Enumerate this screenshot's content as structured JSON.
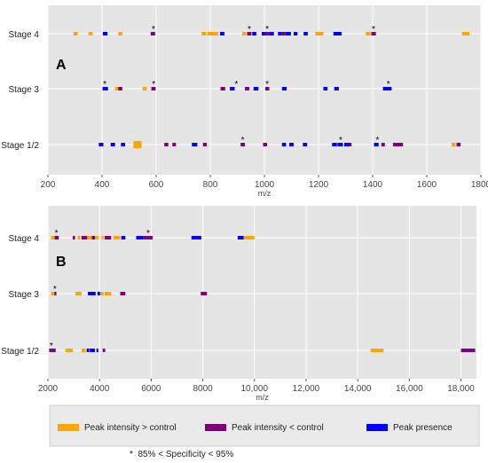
{
  "chart_data": [
    {
      "type": "scatter",
      "panel_label": "A",
      "xlabel": "m/z",
      "ylabel": "",
      "xlim": [
        200,
        1800
      ],
      "xticks": [
        200,
        400,
        600,
        800,
        1000,
        1200,
        1400,
        1600,
        1800
      ],
      "xtick_labels": [
        "200",
        "400",
        "600",
        "800",
        "1000",
        "1200",
        "1400",
        "1600",
        "1800"
      ],
      "categories": [
        "Stage 4",
        "Stage 3",
        "Stage 1/2"
      ],
      "grid": true,
      "series": [
        {
          "name": "Peak intensity > control",
          "color": "#FFA500",
          "points": [
            {
              "y": "Stage 4",
              "x": [
                295,
                310
              ]
            },
            {
              "y": "Stage 4",
              "x": [
                350,
                365
              ]
            },
            {
              "y": "Stage 4",
              "x": [
                460,
                475
              ]
            },
            {
              "y": "Stage 4",
              "x": [
                768,
                785
              ]
            },
            {
              "y": "Stage 4",
              "x": [
                790,
                830
              ]
            },
            {
              "y": "Stage 4",
              "x": [
                918,
                932
              ]
            },
            {
              "y": "Stage 4",
              "x": [
                1188,
                1218
              ]
            },
            {
              "y": "Stage 4",
              "x": [
                1375,
                1392
              ]
            },
            {
              "y": "Stage 4",
              "x": [
                1730,
                1758
              ]
            },
            {
              "y": "Stage 3",
              "x": [
                448,
                462
              ]
            },
            {
              "y": "Stage 3",
              "x": [
                550,
                565
              ]
            },
            {
              "y": "Stage 1/2",
              "x": [
                516,
                546
              ]
            },
            {
              "y": "Stage 1/2",
              "x": [
                1692,
                1705
              ]
            }
          ]
        },
        {
          "name": "Peak intensity < control",
          "color": "#800080",
          "points": [
            {
              "y": "Stage 4",
              "x": [
                580,
                596
              ]
            },
            {
              "y": "Stage 4",
              "x": [
                936,
                952
              ]
            },
            {
              "y": "Stage 4",
              "x": [
                1003,
                1020
              ]
            },
            {
              "y": "Stage 4",
              "x": [
                1065,
                1078
              ]
            },
            {
              "y": "Stage 4",
              "x": [
                1395,
                1412
              ]
            },
            {
              "y": "Stage 3",
              "x": [
                460,
                475
              ]
            },
            {
              "y": "Stage 3",
              "x": [
                582,
                598
              ]
            },
            {
              "y": "Stage 3",
              "x": [
                838,
                855
              ]
            },
            {
              "y": "Stage 3",
              "x": [
                872,
                883
              ]
            },
            {
              "y": "Stage 3",
              "x": [
                928,
                944
              ]
            },
            {
              "y": "Stage 3",
              "x": [
                1003,
                1018
              ]
            },
            {
              "y": "Stage 1/2",
              "x": [
                630,
                645
              ]
            },
            {
              "y": "Stage 1/2",
              "x": [
                660,
                673
              ]
            },
            {
              "y": "Stage 1/2",
              "x": [
                773,
                787
              ]
            },
            {
              "y": "Stage 1/2",
              "x": [
                912,
                928
              ]
            },
            {
              "y": "Stage 1/2",
              "x": [
                995,
                1010
              ]
            },
            {
              "y": "Stage 1/2",
              "x": [
                1310,
                1322
              ]
            },
            {
              "y": "Stage 1/2",
              "x": [
                1432,
                1445
              ]
            },
            {
              "y": "Stage 1/2",
              "x": [
                1475,
                1512
              ]
            },
            {
              "y": "Stage 1/2",
              "x": [
                1710,
                1725
              ]
            }
          ]
        },
        {
          "name": "Peak presence",
          "color": "#0000FF",
          "points": [
            {
              "y": "Stage 4",
              "x": [
                403,
                420
              ]
            },
            {
              "y": "Stage 4",
              "x": [
                836,
                852
              ]
            },
            {
              "y": "Stage 4",
              "x": [
                955,
                970
              ]
            },
            {
              "y": "Stage 4",
              "x": [
                990,
                1003
              ]
            },
            {
              "y": "Stage 4",
              "x": [
                1020,
                1035
              ]
            },
            {
              "y": "Stage 4",
              "x": [
                1050,
                1065
              ]
            },
            {
              "y": "Stage 4",
              "x": [
                1078,
                1098
              ]
            },
            {
              "y": "Stage 4",
              "x": [
                1108,
                1122
              ]
            },
            {
              "y": "Stage 4",
              "x": [
                1145,
                1160
              ]
            },
            {
              "y": "Stage 4",
              "x": [
                1255,
                1285
              ]
            },
            {
              "y": "Stage 3",
              "x": [
                402,
                422
              ]
            },
            {
              "y": "Stage 3",
              "x": [
                875,
                890
              ]
            },
            {
              "y": "Stage 3",
              "x": [
                960,
                978
              ]
            },
            {
              "y": "Stage 3",
              "x": [
                1065,
                1082
              ]
            },
            {
              "y": "Stage 3",
              "x": [
                1218,
                1233
              ]
            },
            {
              "y": "Stage 3",
              "x": [
                1258,
                1275
              ]
            },
            {
              "y": "Stage 3",
              "x": [
                1438,
                1470
              ]
            },
            {
              "y": "Stage 1/2",
              "x": [
                388,
                405
              ]
            },
            {
              "y": "Stage 1/2",
              "x": [
                432,
                448
              ]
            },
            {
              "y": "Stage 1/2",
              "x": [
                470,
                485
              ]
            },
            {
              "y": "Stage 1/2",
              "x": [
                732,
                752
              ]
            },
            {
              "y": "Stage 1/2",
              "x": [
                1065,
                1080
              ]
            },
            {
              "y": "Stage 1/2",
              "x": [
                1092,
                1108
              ]
            },
            {
              "y": "Stage 1/2",
              "x": [
                1142,
                1158
              ]
            },
            {
              "y": "Stage 1/2",
              "x": [
                1250,
                1268
              ]
            },
            {
              "y": "Stage 1/2",
              "x": [
                1270,
                1290
              ]
            },
            {
              "y": "Stage 1/2",
              "x": [
                1295,
                1315
              ]
            },
            {
              "y": "Stage 1/2",
              "x": [
                1405,
                1422
              ]
            }
          ]
        }
      ],
      "annotations": [
        {
          "text": "*",
          "x": 590,
          "y": "Stage 4"
        },
        {
          "text": "*",
          "x": 944,
          "y": "Stage 4"
        },
        {
          "text": "*",
          "x": 1010,
          "y": "Stage 4"
        },
        {
          "text": "*",
          "x": 1403,
          "y": "Stage 4"
        },
        {
          "text": "*",
          "x": 410,
          "y": "Stage 3"
        },
        {
          "text": "*",
          "x": 591,
          "y": "Stage 3"
        },
        {
          "text": "*",
          "x": 896,
          "y": "Stage 3"
        },
        {
          "text": "*",
          "x": 1010,
          "y": "Stage 3"
        },
        {
          "text": "*",
          "x": 1458,
          "y": "Stage 3"
        },
        {
          "text": "*",
          "x": 920,
          "y": "Stage 1/2"
        },
        {
          "text": "*",
          "x": 1282,
          "y": "Stage 1/2"
        },
        {
          "text": "*",
          "x": 1418,
          "y": "Stage 1/2"
        }
      ]
    },
    {
      "type": "scatter",
      "panel_label": "B",
      "xlabel": "m/z",
      "ylabel": "",
      "xlim": [
        2000,
        18600
      ],
      "xticks": [
        2000,
        4000,
        6000,
        8000,
        10000,
        12000,
        14000,
        16000,
        18000
      ],
      "xtick_labels": [
        "2000",
        "4000",
        "6000",
        "8000",
        "10,000",
        "12,000",
        "14,000",
        "16,000",
        "18,000"
      ],
      "categories": [
        "Stage 4",
        "Stage 3",
        "Stage 1/2"
      ],
      "grid": true,
      "series": [
        {
          "name": "Peak intensity > control",
          "color": "#FFA500",
          "points": [
            {
              "y": "Stage 4",
              "x": [
                2120,
                2260
              ]
            },
            {
              "y": "Stage 4",
              "x": [
                3150,
                3250
              ]
            },
            {
              "y": "Stage 4",
              "x": [
                3520,
                3700
              ]
            },
            {
              "y": "Stage 4",
              "x": [
                3820,
                3960
              ]
            },
            {
              "y": "Stage 4",
              "x": [
                4080,
                4160
              ]
            },
            {
              "y": "Stage 4",
              "x": [
                4540,
                4800
              ]
            },
            {
              "y": "Stage 4",
              "x": [
                9580,
                10000
              ]
            },
            {
              "y": "Stage 3",
              "x": [
                2120,
                2250
              ]
            },
            {
              "y": "Stage 3",
              "x": [
                3070,
                3300
              ]
            },
            {
              "y": "Stage 3",
              "x": [
                4020,
                4150
              ]
            },
            {
              "y": "Stage 3",
              "x": [
                4200,
                4450
              ]
            },
            {
              "y": "Stage 1/2",
              "x": [
                2680,
                2960
              ]
            },
            {
              "y": "Stage 1/2",
              "x": [
                3300,
                3460
              ]
            },
            {
              "y": "Stage 1/2",
              "x": [
                14500,
                15000
              ]
            }
          ]
        },
        {
          "name": "Peak intensity < control",
          "color": "#800080",
          "points": [
            {
              "y": "Stage 4",
              "x": [
                2260,
                2420
              ]
            },
            {
              "y": "Stage 4",
              "x": [
                2960,
                3050
              ]
            },
            {
              "y": "Stage 4",
              "x": [
                3300,
                3520
              ]
            },
            {
              "y": "Stage 4",
              "x": [
                3700,
                3820
              ]
            },
            {
              "y": "Stage 4",
              "x": [
                4200,
                4450
              ]
            },
            {
              "y": "Stage 4",
              "x": [
                5700,
                6060
              ]
            },
            {
              "y": "Stage 3",
              "x": [
                2250,
                2330
              ]
            },
            {
              "y": "Stage 3",
              "x": [
                4800,
                5000
              ]
            },
            {
              "y": "Stage 3",
              "x": [
                7920,
                8160
              ]
            },
            {
              "y": "Stage 1/2",
              "x": [
                2050,
                2300
              ]
            },
            {
              "y": "Stage 1/2",
              "x": [
                4120,
                4220
              ]
            },
            {
              "y": "Stage 1/2",
              "x": [
                18000,
                18550
              ]
            }
          ]
        },
        {
          "name": "Peak presence",
          "color": "#0000FF",
          "points": [
            {
              "y": "Stage 4",
              "x": [
                4840,
                5000
              ]
            },
            {
              "y": "Stage 4",
              "x": [
                5420,
                5700
              ]
            },
            {
              "y": "Stage 4",
              "x": [
                7560,
                7940
              ]
            },
            {
              "y": "Stage 4",
              "x": [
                9350,
                9580
              ]
            },
            {
              "y": "Stage 3",
              "x": [
                3550,
                3850
              ]
            },
            {
              "y": "Stage 3",
              "x": [
                3920,
                4020
              ]
            },
            {
              "y": "Stage 1/2",
              "x": [
                3500,
                3600
              ]
            },
            {
              "y": "Stage 1/2",
              "x": [
                3620,
                3820
              ]
            },
            {
              "y": "Stage 1/2",
              "x": [
                3880,
                3950
              ]
            }
          ]
        }
      ],
      "annotations": [
        {
          "text": "*",
          "x": 2330,
          "y": "Stage 4"
        },
        {
          "text": "*",
          "x": 5880,
          "y": "Stage 4"
        },
        {
          "text": "*",
          "x": 2270,
          "y": "Stage 3"
        },
        {
          "text": "*",
          "x": 2130,
          "y": "Stage 1/2"
        }
      ]
    }
  ],
  "legend": {
    "items": [
      {
        "label": "Peak intensity > control",
        "color": "#FFA500"
      },
      {
        "label": "Peak intensity < control",
        "color": "#800080"
      },
      {
        "label": "Peak presence",
        "color": "#0000FF"
      }
    ],
    "footnote": "*  85% < Specificity < 95%"
  }
}
